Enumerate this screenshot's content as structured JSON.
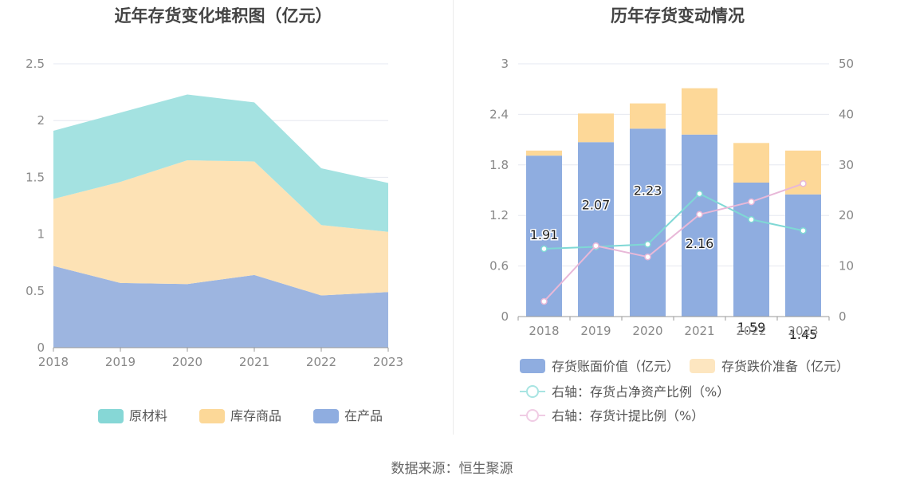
{
  "source": "数据来源：恒生聚源",
  "chart_data": [
    {
      "type": "area",
      "stacked": true,
      "title": "近年存货变化堆积图（亿元）",
      "categories": [
        "2018",
        "2019",
        "2020",
        "2021",
        "2022",
        "2023"
      ],
      "ylim": [
        0,
        2.5
      ],
      "yticks": [
        "0",
        "0.5",
        "1",
        "1.5",
        "2",
        "2.5"
      ],
      "series": [
        {
          "name": "在产品",
          "color": "#9db5e0",
          "values": [
            0.72,
            0.57,
            0.56,
            0.64,
            0.46,
            0.49
          ]
        },
        {
          "name": "库存商品",
          "color": "#fde2b5",
          "values": [
            0.59,
            0.89,
            1.09,
            1.0,
            0.62,
            0.53
          ]
        },
        {
          "name": "原材料",
          "color": "#a4e2e1",
          "values": [
            0.6,
            0.61,
            0.58,
            0.52,
            0.5,
            0.43
          ]
        }
      ],
      "legend": [
        {
          "name": "原材料",
          "color": "#86d7d6"
        },
        {
          "name": "库存商品",
          "color": "#fcd898"
        },
        {
          "name": "在产品",
          "color": "#8fade0"
        }
      ]
    },
    {
      "type": "bar",
      "title": "历年存货变动情况",
      "categories": [
        "2018",
        "2019",
        "2020",
        "2021",
        "2022",
        "2023"
      ],
      "ylim": [
        0,
        3
      ],
      "yticks": [
        "0",
        "0.6",
        "1.2",
        "1.8",
        "2.4",
        "3"
      ],
      "y2lim": [
        0,
        50
      ],
      "y2ticks": [
        "0",
        "10",
        "20",
        "30",
        "40",
        "50"
      ],
      "bars": [
        {
          "name": "存货账面价值（亿元）",
          "color": "#8fade0",
          "values": [
            1.91,
            2.07,
            2.23,
            2.16,
            1.59,
            1.45
          ],
          "labels": [
            "1.91",
            "2.07",
            "2.23",
            "2.16",
            "1.59",
            "1.45"
          ]
        },
        {
          "name": "存货跌价准备（亿元）",
          "color": "#fdd898",
          "values": [
            0.06,
            0.34,
            0.3,
            0.55,
            0.47,
            0.52
          ]
        }
      ],
      "lines": [
        {
          "name": "右轴：存货占净资产比例（%）",
          "color": "#7fd8d5",
          "values": [
            13.4,
            13.8,
            14.3,
            24.3,
            19.2,
            17.0
          ]
        },
        {
          "name": "右轴：存货计提比例（%）",
          "color": "#e8b8d8",
          "values": [
            3.0,
            14.0,
            11.8,
            20.2,
            22.7,
            26.3
          ]
        }
      ],
      "legend": [
        {
          "name": "存货账面价值（亿元）",
          "color": "#8fade0",
          "kind": "rect"
        },
        {
          "name": "存货跌价准备（亿元）",
          "color": "#fde6c0",
          "kind": "rect"
        },
        {
          "name": "右轴：存货占净资产比例（%）",
          "color": "#a8e4e2",
          "kind": "line"
        },
        {
          "name": "右轴：存货计提比例（%）",
          "color": "#f0cce4",
          "kind": "line"
        }
      ]
    }
  ]
}
